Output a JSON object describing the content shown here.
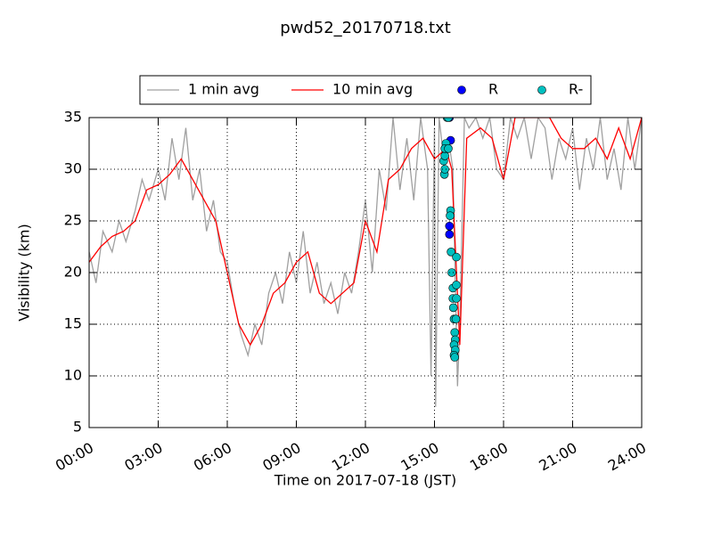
{
  "chart_data": {
    "type": "line",
    "title": "pwd52_20170718.txt",
    "xlabel": "Time on 2017-07-18 (JST)",
    "ylabel": "Visibility (km)",
    "xlim": [
      0,
      24
    ],
    "ylim": [
      5,
      35
    ],
    "xticks": [
      {
        "value": 0,
        "label": "00:00"
      },
      {
        "value": 3,
        "label": "03:00"
      },
      {
        "value": 6,
        "label": "06:00"
      },
      {
        "value": 9,
        "label": "09:00"
      },
      {
        "value": 12,
        "label": "12:00"
      },
      {
        "value": 15,
        "label": "15:00"
      },
      {
        "value": 18,
        "label": "18:00"
      },
      {
        "value": 21,
        "label": "21:00"
      },
      {
        "value": 24,
        "label": "24:00"
      }
    ],
    "yticks": [
      5,
      10,
      15,
      20,
      25,
      30,
      35
    ],
    "grid": true,
    "legend": "top",
    "series": [
      {
        "name": "1 min avg",
        "color": "#a0a0a0",
        "mode": "line",
        "x": [
          0,
          0.3,
          0.6,
          1,
          1.3,
          1.6,
          2,
          2.3,
          2.6,
          3,
          3.3,
          3.6,
          3.9,
          4.2,
          4.5,
          4.8,
          5.1,
          5.4,
          5.7,
          6,
          6.3,
          6.6,
          6.9,
          7.2,
          7.5,
          7.8,
          8.1,
          8.4,
          8.7,
          9,
          9.3,
          9.6,
          9.9,
          10.2,
          10.5,
          10.8,
          11.1,
          11.4,
          11.7,
          12,
          12.3,
          12.6,
          12.9,
          13.2,
          13.5,
          13.8,
          14.1,
          14.4,
          14.7,
          14.85,
          15,
          15.05,
          15.2,
          15.4,
          15.6,
          15.8,
          16,
          16.1,
          16.3,
          16.5,
          16.8,
          17.1,
          17.4,
          17.7,
          18,
          18.3,
          18.6,
          18.9,
          19.2,
          19.5,
          19.8,
          20.1,
          20.4,
          20.7,
          21,
          21.3,
          21.6,
          21.9,
          22.2,
          22.5,
          22.8,
          23.1,
          23.4,
          23.7,
          24
        ],
        "values": [
          22,
          19,
          24,
          22,
          25,
          23,
          26,
          29,
          27,
          30,
          27,
          33,
          29,
          34,
          27,
          30,
          24,
          27,
          22,
          21,
          17,
          14,
          12,
          15,
          13,
          18,
          20,
          17,
          22,
          19,
          24,
          18,
          21,
          17,
          19,
          16,
          20,
          18,
          22,
          27,
          20,
          30,
          26,
          35,
          28,
          33,
          27,
          35,
          30,
          10,
          34,
          7,
          35,
          31,
          33,
          30,
          9,
          15,
          35,
          34,
          35,
          33,
          35,
          30,
          29,
          35,
          33,
          35,
          31,
          35,
          34,
          29,
          33,
          31,
          34,
          28,
          33,
          30,
          35,
          29,
          32,
          28,
          35,
          30,
          35
        ]
      },
      {
        "name": "10 min avg",
        "color": "#ff0000",
        "mode": "line",
        "x": [
          0,
          0.5,
          1,
          1.5,
          2,
          2.5,
          3,
          3.5,
          4,
          4.5,
          5,
          5.5,
          6,
          6.5,
          7,
          7.5,
          8,
          8.5,
          9,
          9.5,
          10,
          10.5,
          11,
          11.5,
          12,
          12.5,
          13,
          13.5,
          14,
          14.5,
          15,
          15.5,
          15.75,
          16.1,
          16.4,
          17,
          17.5,
          18,
          18.5,
          19,
          20,
          20.5,
          21,
          21.5,
          22,
          22.5,
          23,
          23.5,
          24
        ],
        "values": [
          21,
          22.5,
          23.5,
          24,
          25,
          28,
          28.5,
          29.5,
          31,
          29,
          27,
          25,
          20,
          15,
          13,
          15,
          18,
          19,
          21,
          22,
          18,
          17,
          18,
          19,
          25,
          22,
          29,
          30,
          32,
          33,
          31,
          32,
          30,
          13,
          33,
          34,
          33,
          29,
          35,
          35,
          35,
          33,
          32,
          32,
          33,
          31,
          34,
          31,
          35
        ]
      },
      {
        "name": "R",
        "color": "#0000ff",
        "mode": "markers",
        "x": [
          15.65,
          15.7,
          15.65,
          15.65
        ],
        "values": [
          35,
          32.8,
          24.5,
          23.7
        ]
      },
      {
        "name": "R-",
        "color": "#00bfbf",
        "mode": "markers",
        "x": [
          15.43,
          15.45,
          15.4,
          15.45,
          15.5,
          15.45,
          15.6,
          15.55,
          15.6,
          15.7,
          15.68,
          15.72,
          15.75,
          15.8,
          15.95,
          15.8,
          15.95,
          15.82,
          15.85,
          15.93,
          15.88,
          15.9,
          15.85,
          15.9,
          15.85,
          15.88,
          15.95
        ],
        "values": [
          29.5,
          30,
          30.8,
          31.3,
          32.5,
          32,
          32,
          35,
          35,
          26,
          25.5,
          22,
          20,
          18.5,
          18.8,
          17.5,
          17.5,
          16.6,
          15.5,
          15.5,
          14.2,
          13.5,
          13,
          12.5,
          12,
          11.8,
          21.5
        ]
      }
    ]
  }
}
